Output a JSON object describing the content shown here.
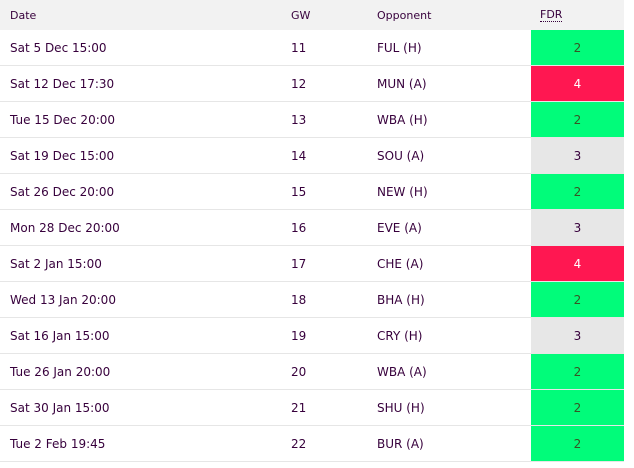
{
  "table": {
    "headers": {
      "date": "Date",
      "gw": "GW",
      "opponent": "Opponent",
      "fdr": "FDR"
    },
    "rows": [
      {
        "date": "Sat 5 Dec 15:00",
        "gw": "11",
        "opponent": "FUL (H)",
        "fdr": "2"
      },
      {
        "date": "Sat 12 Dec 17:30",
        "gw": "12",
        "opponent": "MUN (A)",
        "fdr": "4"
      },
      {
        "date": "Tue 15 Dec 20:00",
        "gw": "13",
        "opponent": "WBA (H)",
        "fdr": "2"
      },
      {
        "date": "Sat 19 Dec 15:00",
        "gw": "14",
        "opponent": "SOU (A)",
        "fdr": "3"
      },
      {
        "date": "Sat 26 Dec 20:00",
        "gw": "15",
        "opponent": "NEW (H)",
        "fdr": "2"
      },
      {
        "date": "Mon 28 Dec 20:00",
        "gw": "16",
        "opponent": "EVE (A)",
        "fdr": "3"
      },
      {
        "date": "Sat 2 Jan 15:00",
        "gw": "17",
        "opponent": "CHE (A)",
        "fdr": "4"
      },
      {
        "date": "Wed 13 Jan 20:00",
        "gw": "18",
        "opponent": "BHA (H)",
        "fdr": "2"
      },
      {
        "date": "Sat 16 Jan 15:00",
        "gw": "19",
        "opponent": "CRY (H)",
        "fdr": "3"
      },
      {
        "date": "Tue 26 Jan 20:00",
        "gw": "20",
        "opponent": "WBA (A)",
        "fdr": "2"
      },
      {
        "date": "Sat 30 Jan 15:00",
        "gw": "21",
        "opponent": "SHU (H)",
        "fdr": "2"
      },
      {
        "date": "Tue 2 Feb 19:45",
        "gw": "22",
        "opponent": "BUR (A)",
        "fdr": "2"
      }
    ]
  },
  "fdr_colors": {
    "2": "#01fc7a",
    "3": "#e7e7e7",
    "4": "#ff1751"
  }
}
